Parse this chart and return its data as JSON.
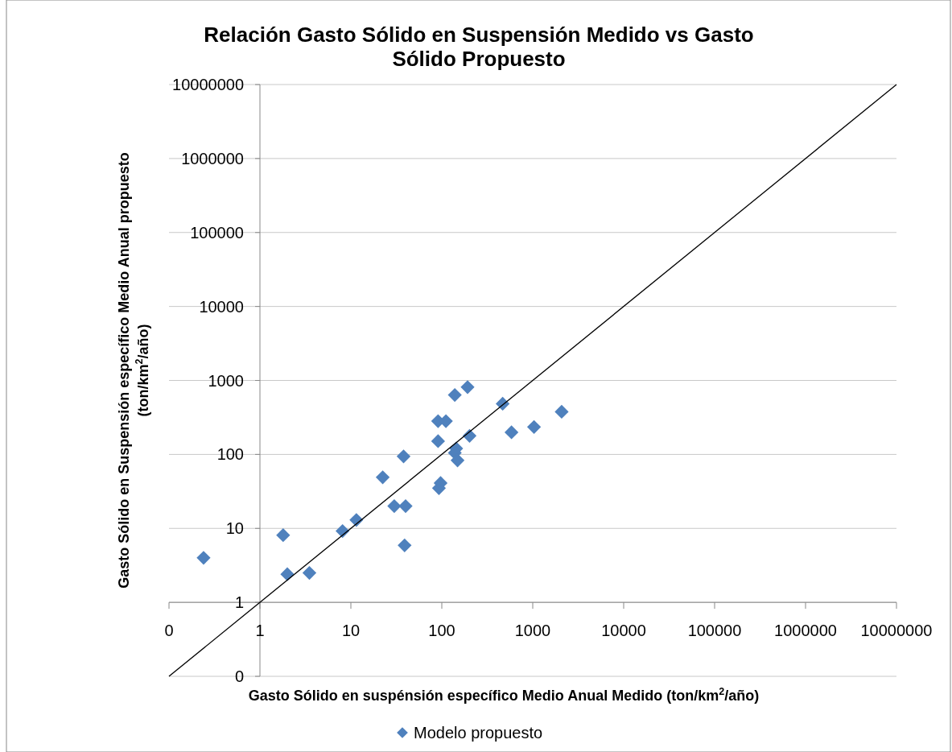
{
  "chart_data": {
    "type": "scatter",
    "title": "Relación Gasto Sólido en Suspensión Medido vs Gasto Sólido Propuesto",
    "xlabel": "Gasto Sólido en suspénsión específico Medio Anual Medido (ton/km$^{2}$/año)",
    "ylabel": "Gasto Sólido en Suspensión específico Medio Anual propuesto (ton/km$^{2}$/año)",
    "log": "xy",
    "grid": "y",
    "legend": "bottom",
    "marker": "diamond",
    "xlim": [
      0.1,
      10000000
    ],
    "ylim": [
      0.1,
      10000000
    ],
    "xticks": [
      {
        "value": 0.1,
        "label": "0"
      },
      1,
      10,
      100,
      1000,
      10000,
      100000,
      1000000,
      10000000
    ],
    "yticks": [
      {
        "value": 0.1,
        "label": "0"
      },
      1,
      10,
      100,
      1000,
      10000,
      100000,
      1000000,
      10000000
    ],
    "series": [
      {
        "name": "Modelo propuesto",
        "color": "#4f81bd",
        "x": [
          0.24,
          1.8,
          2.0,
          3.5,
          8.1,
          11.5,
          22.4,
          30,
          40,
          38,
          39,
          91,
          91,
          111,
          93,
          97,
          139,
          192,
          144,
          139,
          149,
          202,
          467,
          584,
          1033,
          2080
        ],
        "values": [
          4.0,
          8.1,
          2.4,
          2.5,
          9.2,
          13,
          49,
          20,
          20,
          94,
          5.9,
          151,
          282,
          282,
          35,
          41,
          635,
          812,
          120,
          105,
          83,
          178,
          484,
          199,
          235,
          377
        ]
      },
      {
        "type": "line",
        "marker": "none",
        "color": "#000000",
        "x": [
          0.1,
          10000000
        ],
        "values": [
          0.1,
          10000000
        ]
      }
    ]
  }
}
